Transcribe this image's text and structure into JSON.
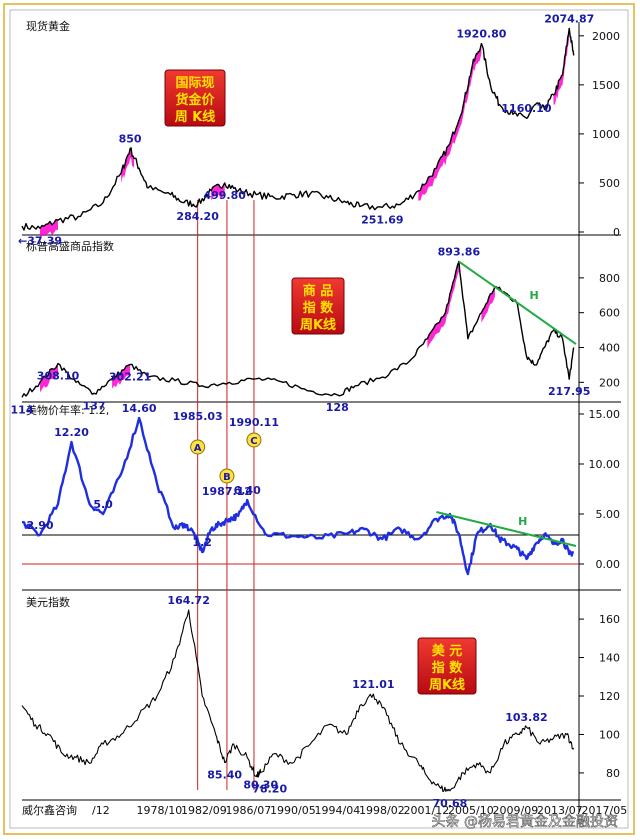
{
  "chart_data": [
    {
      "type": "line",
      "title": "现货黄金",
      "badge_lines": [
        "国际现",
        "货金价",
        "周 K线"
      ],
      "y_ticks": [
        0,
        500,
        1000,
        1500,
        2000
      ],
      "ylim": [
        0,
        2100
      ],
      "series": [
        {
          "points": [
            [
              0,
              60
            ],
            [
              0.04,
              37.39
            ],
            [
              0.08,
              120
            ],
            [
              0.13,
              160
            ],
            [
              0.18,
              300
            ],
            [
              0.22,
              600
            ],
            [
              0.24,
              850
            ],
            [
              0.26,
              650
            ],
            [
              0.28,
              450
            ],
            [
              0.33,
              380
            ],
            [
              0.36,
              300
            ],
            [
              0.39,
              284.2
            ],
            [
              0.42,
              420
            ],
            [
              0.45,
              499.8
            ],
            [
              0.48,
              420
            ],
            [
              0.52,
              380
            ],
            [
              0.56,
              350
            ],
            [
              0.6,
              380
            ],
            [
              0.64,
              390
            ],
            [
              0.68,
              350
            ],
            [
              0.72,
              300
            ],
            [
              0.75,
              260
            ],
            [
              0.8,
              251.69
            ],
            [
              0.84,
              280
            ],
            [
              0.88,
              420
            ],
            [
              0.92,
              650
            ],
            [
              0.95,
              900
            ],
            [
              0.98,
              1300
            ],
            [
              1.0,
              1700
            ],
            [
              1.02,
              1920.8
            ],
            [
              1.04,
              1500
            ],
            [
              1.06,
              1300
            ],
            [
              1.09,
              1200
            ],
            [
              1.12,
              1160.1
            ],
            [
              1.14,
              1300
            ],
            [
              1.16,
              1250
            ],
            [
              1.18,
              1400
            ],
            [
              1.2,
              1600
            ],
            [
              1.215,
              2074.87
            ],
            [
              1.225,
              1800
            ]
          ],
          "highlight_ranges": [
            [
              0.04,
              0.08
            ],
            [
              0.22,
              0.25
            ],
            [
              0.42,
              0.45
            ],
            [
              0.88,
              1.02
            ],
            [
              1.18,
              1.215
            ]
          ]
        }
      ],
      "labels": [
        {
          "text": "850",
          "x": 0.24,
          "y": 850
        },
        {
          "text": "499.80",
          "x": 0.45,
          "y": 499.8
        },
        {
          "text": "284.20",
          "x": 0.39,
          "y": 284.2
        },
        {
          "text": "251.69",
          "x": 0.8,
          "y": 251.69
        },
        {
          "text": "1920.80",
          "x": 1.02,
          "y": 1920.8
        },
        {
          "text": "2074.87",
          "x": 1.215,
          "y": 2074.87
        },
        {
          "text": "1160.10",
          "x": 1.12,
          "y": 1160.1
        },
        {
          "text": "←37.39",
          "x": 0.04,
          "y": 37.39
        }
      ]
    },
    {
      "type": "line",
      "title": "标普高盛商品指数",
      "badge_lines": [
        "商 品",
        "指 数",
        "周K线"
      ],
      "y_ticks": [
        200,
        400,
        600,
        800
      ],
      "ylim": [
        110,
        960
      ],
      "series": [
        {
          "points": [
            [
              0,
              114
            ],
            [
              0.04,
              200
            ],
            [
              0.08,
              308.1
            ],
            [
              0.12,
              200
            ],
            [
              0.16,
              137
            ],
            [
              0.2,
              220
            ],
            [
              0.24,
              302.21
            ],
            [
              0.28,
              230
            ],
            [
              0.34,
              210
            ],
            [
              0.4,
              180
            ],
            [
              0.46,
              200
            ],
            [
              0.52,
              220
            ],
            [
              0.58,
              200
            ],
            [
              0.64,
              150
            ],
            [
              0.7,
              128
            ],
            [
              0.74,
              180
            ],
            [
              0.8,
              230
            ],
            [
              0.86,
              320
            ],
            [
              0.9,
              450
            ],
            [
              0.94,
              600
            ],
            [
              0.97,
              893.86
            ],
            [
              0.99,
              450
            ],
            [
              1.02,
              600
            ],
            [
              1.05,
              750
            ],
            [
              1.08,
              700
            ],
            [
              1.1,
              650
            ],
            [
              1.12,
              350
            ],
            [
              1.14,
              300
            ],
            [
              1.16,
              400
            ],
            [
              1.18,
              500
            ],
            [
              1.2,
              450
            ],
            [
              1.215,
              217.95
            ],
            [
              1.225,
              400
            ]
          ],
          "highlight_ranges": [
            [
              0.04,
              0.08
            ],
            [
              0.2,
              0.24
            ],
            [
              0.9,
              0.97
            ],
            [
              1.02,
              1.05
            ]
          ]
        }
      ],
      "labels": [
        {
          "text": "114",
          "x": 0,
          "y": 114
        },
        {
          "text": "308.10",
          "x": 0.08,
          "y": 308.1
        },
        {
          "text": "137",
          "x": 0.16,
          "y": 137
        },
        {
          "text": "302.21",
          "x": 0.24,
          "y": 302.21
        },
        {
          "text": "128",
          "x": 0.7,
          "y": 128
        },
        {
          "text": "893.86",
          "x": 0.97,
          "y": 893.86
        },
        {
          "text": "217.95",
          "x": 1.215,
          "y": 217.95
        }
      ],
      "trendline": {
        "label": "H",
        "from": [
          0.97,
          893.86
        ],
        "to": [
          1.23,
          420
        ]
      }
    },
    {
      "type": "line",
      "title": "美物价年率: 1.2,",
      "y_ticks": [
        0,
        5,
        10,
        15
      ],
      "ylim": [
        -2.2,
        15.8
      ],
      "reference_lines": [
        2.9,
        0
      ],
      "series": [
        {
          "points": [
            [
              0,
              4.2
            ],
            [
              0.04,
              2.9
            ],
            [
              0.08,
              6.0
            ],
            [
              0.11,
              12.2
            ],
            [
              0.15,
              6.0
            ],
            [
              0.18,
              5.0
            ],
            [
              0.22,
              9.0
            ],
            [
              0.26,
              14.6
            ],
            [
              0.3,
              8.0
            ],
            [
              0.34,
              3.5
            ],
            [
              0.36,
              4.0
            ],
            [
              0.38,
              3.2
            ],
            [
              0.4,
              1.2
            ],
            [
              0.42,
              3.5
            ],
            [
              0.44,
              4.0
            ],
            [
              0.46,
              4.5
            ],
            [
              0.48,
              4.8
            ],
            [
              0.5,
              6.4
            ],
            [
              0.54,
              3.0
            ],
            [
              0.6,
              2.8
            ],
            [
              0.66,
              2.6
            ],
            [
              0.72,
              3.0
            ],
            [
              0.76,
              3.5
            ],
            [
              0.8,
              2.5
            ],
            [
              0.84,
              3.5
            ],
            [
              0.88,
              2.5
            ],
            [
              0.92,
              4.5
            ],
            [
              0.95,
              5.0
            ],
            [
              0.97,
              3.0
            ],
            [
              0.99,
              -1.0
            ],
            [
              1.01,
              3.0
            ],
            [
              1.04,
              4.0
            ],
            [
              1.06,
              2.5
            ],
            [
              1.08,
              2.0
            ],
            [
              1.1,
              1.5
            ],
            [
              1.12,
              0.5
            ],
            [
              1.14,
              2.0
            ],
            [
              1.16,
              3.0
            ],
            [
              1.18,
              2.0
            ],
            [
              1.2,
              2.5
            ],
            [
              1.215,
              1.0
            ],
            [
              1.225,
              1.2
            ]
          ]
        }
      ],
      "labels": [
        {
          "text": "12.20",
          "x": 0.11,
          "y": 12.2
        },
        {
          "text": "14.60",
          "x": 0.26,
          "y": 14.6
        },
        {
          "text": "5.0",
          "x": 0.18,
          "y": 5.0
        },
        {
          "text": "2.90",
          "x": 0.04,
          "y": 2.9
        },
        {
          "text": "1.2",
          "x": 0.4,
          "y": 1.2
        },
        {
          "text": "6.40",
          "x": 0.5,
          "y": 6.4
        }
      ],
      "date_labels": [
        {
          "text": "1985.03",
          "letter": "A",
          "x": 0.39
        },
        {
          "text": "1987.12",
          "letter": "B",
          "x": 0.455
        },
        {
          "text": "1990.11",
          "letter": "C",
          "x": 0.515
        }
      ],
      "trendline": {
        "label": "H",
        "from": [
          0.92,
          5.2
        ],
        "to": [
          1.23,
          1.8
        ]
      }
    },
    {
      "type": "line",
      "title": "美元指数",
      "badge_lines": [
        "美 元",
        "指 数",
        "周K线"
      ],
      "y_ticks": [
        80,
        100,
        120,
        140,
        160
      ],
      "ylim": [
        68,
        172
      ],
      "series": [
        {
          "points": [
            [
              0,
              115
            ],
            [
              0.03,
              105
            ],
            [
              0.06,
              100
            ],
            [
              0.09,
              90
            ],
            [
              0.12,
              88
            ],
            [
              0.15,
              85
            ],
            [
              0.18,
              95
            ],
            [
              0.22,
              100
            ],
            [
              0.26,
              110
            ],
            [
              0.3,
              120
            ],
            [
              0.34,
              140
            ],
            [
              0.37,
              164.72
            ],
            [
              0.4,
              120
            ],
            [
              0.43,
              100
            ],
            [
              0.45,
              85.4
            ],
            [
              0.47,
              95
            ],
            [
              0.5,
              88
            ],
            [
              0.52,
              78.2
            ],
            [
              0.53,
              80.3
            ],
            [
              0.56,
              90
            ],
            [
              0.6,
              85
            ],
            [
              0.64,
              95
            ],
            [
              0.68,
              105
            ],
            [
              0.72,
              100
            ],
            [
              0.75,
              115
            ],
            [
              0.78,
              121.01
            ],
            [
              0.81,
              110
            ],
            [
              0.84,
              95
            ],
            [
              0.88,
              85
            ],
            [
              0.9,
              78
            ],
            [
              0.93,
              72
            ],
            [
              0.95,
              70.68
            ],
            [
              0.98,
              80
            ],
            [
              1.01,
              85
            ],
            [
              1.04,
              80
            ],
            [
              1.07,
              95
            ],
            [
              1.1,
              100
            ],
            [
              1.12,
              103.82
            ],
            [
              1.15,
              95
            ],
            [
              1.18,
              98
            ],
            [
              1.21,
              100
            ],
            [
              1.225,
              93
            ]
          ]
        }
      ],
      "labels": [
        {
          "text": "164.72",
          "x": 0.37,
          "y": 164.72
        },
        {
          "text": "85.40",
          "x": 0.45,
          "y": 85.4
        },
        {
          "text": "80.30",
          "x": 0.53,
          "y": 80.3
        },
        {
          "text": "78.20",
          "x": 0.55,
          "y": 78.2
        },
        {
          "text": "121.01",
          "x": 0.78,
          "y": 121.01
        },
        {
          "text": "70.68",
          "x": 0.95,
          "y": 70.68
        },
        {
          "text": "103.82",
          "x": 1.12,
          "y": 103.82
        }
      ]
    }
  ],
  "x_axis_labels": [
    "/12",
    "1978/10",
    "1982/09",
    "1986/07",
    "1990/05",
    "1994/04",
    "1998/02",
    "2001/12",
    "2005/10",
    "2009/09",
    "2013/07",
    "2017/05"
  ],
  "footer_left": "威尔鑫咨询",
  "watermark": "头条 @杨易君黄金及金融投资",
  "colors": {
    "highlight": "#ff00cc",
    "cpi_line": "#1f2fe0",
    "trendline": "#22aa44",
    "vline": "#d02020",
    "badge_bg": "#d8141e",
    "badge_text": "#ffe100"
  }
}
